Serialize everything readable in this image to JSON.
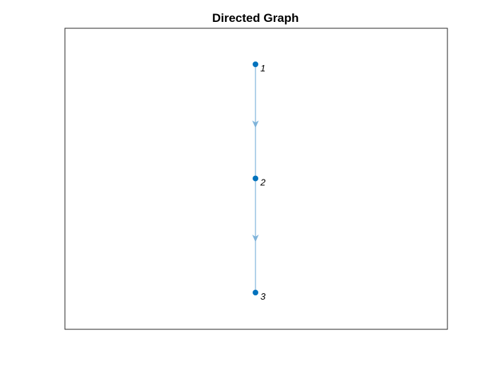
{
  "title": "Directed Graph",
  "colors": {
    "node": "#0072BD",
    "edge": "#7FB3DA",
    "axes_border": "#262626",
    "background": "#ffffff"
  },
  "graph": {
    "directed": true,
    "layout": "layered-vertical",
    "nodes": [
      {
        "id": "1",
        "label": "1"
      },
      {
        "id": "2",
        "label": "2"
      },
      {
        "id": "3",
        "label": "3"
      }
    ],
    "edges": [
      {
        "from": "1",
        "to": "2"
      },
      {
        "from": "2",
        "to": "3"
      }
    ]
  }
}
